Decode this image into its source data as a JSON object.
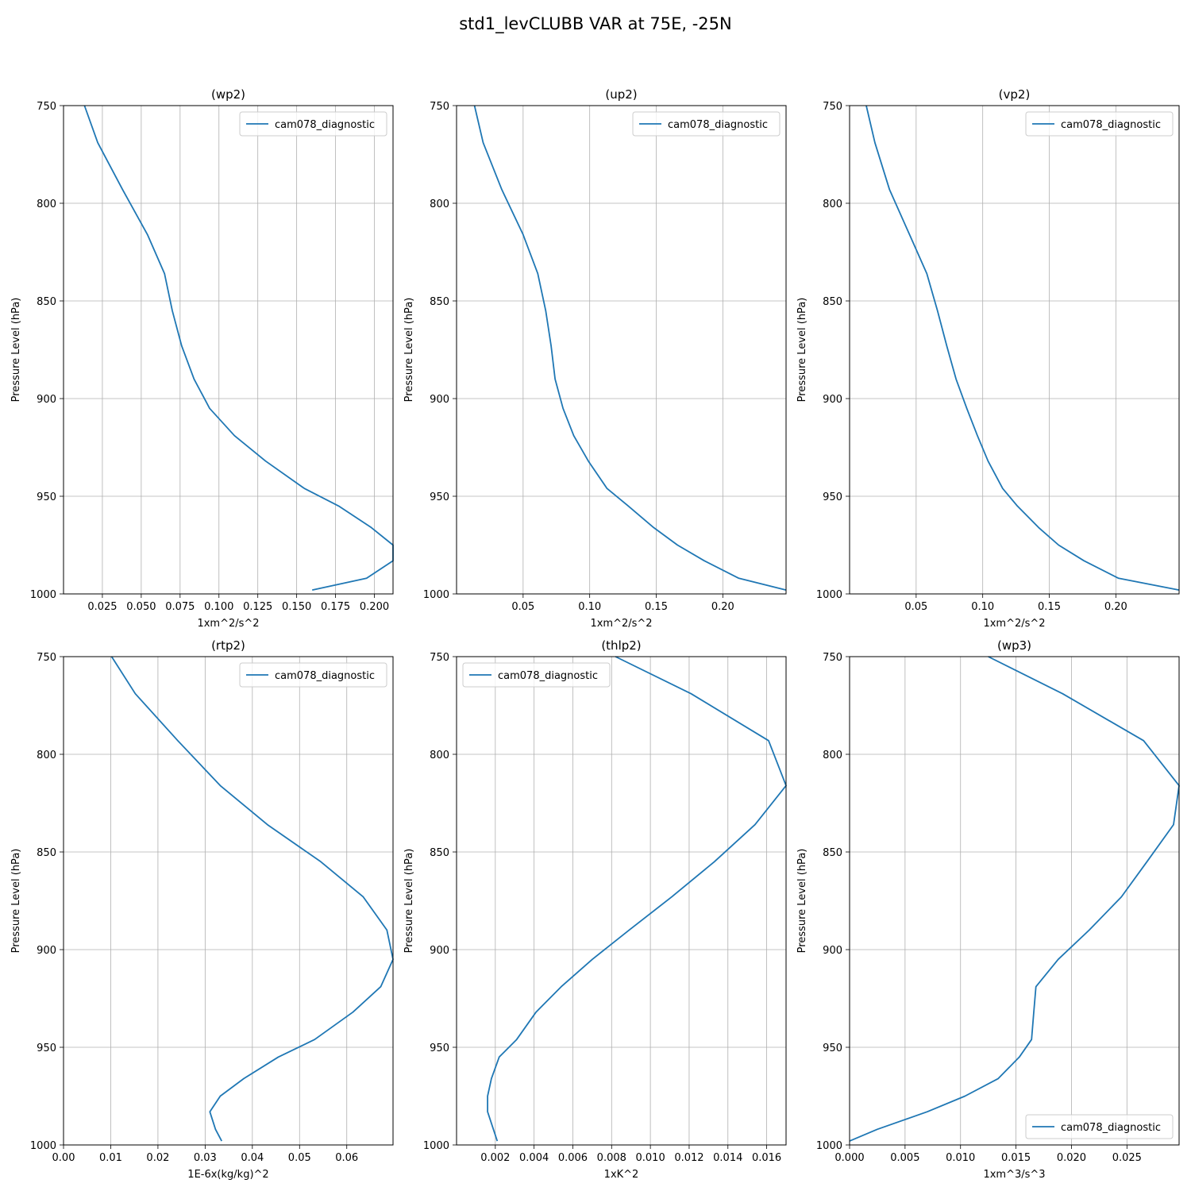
{
  "figure": {
    "title": "std1_levCLUBB VAR at 75E, -25N"
  },
  "series_color": "#1f77b4",
  "chart_data": [
    {
      "type": "line",
      "title": "(wp2)",
      "xlabel": "1xm^2/s^2",
      "ylabel": "Pressure Level (hPa)",
      "xlim": [
        0.0,
        0.212
      ],
      "ylim": [
        1000,
        750
      ],
      "xticks": [
        "0.025",
        "0.050",
        "0.075",
        "0.100",
        "0.125",
        "0.150",
        "0.175",
        "0.200"
      ],
      "xtick_values": [
        0.025,
        0.05,
        0.075,
        0.1,
        0.125,
        0.15,
        0.175,
        0.2
      ],
      "yticks": [
        "750",
        "800",
        "850",
        "900",
        "950",
        "1000"
      ],
      "ytick_values": [
        750,
        800,
        850,
        900,
        950,
        1000
      ],
      "grid": true,
      "legend_position": "upper right",
      "series": [
        {
          "name": "cam078_diagnostic",
          "x": [
            0.0135,
            0.022,
            0.038,
            0.054,
            0.065,
            0.07,
            0.076,
            0.084,
            0.094,
            0.11,
            0.13,
            0.155,
            0.177,
            0.198,
            0.212,
            0.212,
            0.195,
            0.16
          ],
          "y": [
            750,
            769,
            793,
            816,
            836,
            855,
            873,
            890,
            905,
            919,
            932,
            946,
            955,
            966,
            975,
            983,
            992,
            998
          ]
        }
      ]
    },
    {
      "type": "line",
      "title": "(up2)",
      "xlabel": "1xm^2/s^2",
      "ylabel": "Pressure Level (hPa)",
      "xlim": [
        0.0,
        0.2475
      ],
      "ylim": [
        1000,
        750
      ],
      "xticks": [
        "0.05",
        "0.10",
        "0.15",
        "0.20"
      ],
      "xtick_values": [
        0.05,
        0.1,
        0.15,
        0.2
      ],
      "yticks": [
        "750",
        "800",
        "850",
        "900",
        "950",
        "1000"
      ],
      "ytick_values": [
        750,
        800,
        850,
        900,
        950,
        1000
      ],
      "grid": true,
      "legend_position": "upper right",
      "series": [
        {
          "name": "cam078_diagnostic",
          "x": [
            0.0135,
            0.02,
            0.034,
            0.05,
            0.061,
            0.067,
            0.071,
            0.074,
            0.08,
            0.088,
            0.099,
            0.113,
            0.129,
            0.148,
            0.166,
            0.186,
            0.212,
            0.2475
          ],
          "y": [
            750,
            769,
            793,
            816,
            836,
            855,
            873,
            890,
            905,
            919,
            932,
            946,
            955,
            966,
            975,
            983,
            992,
            998
          ]
        }
      ]
    },
    {
      "type": "line",
      "title": "(vp2)",
      "xlabel": "1xm^2/s^2",
      "ylabel": "Pressure Level (hPa)",
      "xlim": [
        0.0,
        0.2475
      ],
      "ylim": [
        1000,
        750
      ],
      "xticks": [
        "0.05",
        "0.10",
        "0.15",
        "0.20"
      ],
      "xtick_values": [
        0.05,
        0.1,
        0.15,
        0.2
      ],
      "yticks": [
        "750",
        "800",
        "850",
        "900",
        "950",
        "1000"
      ],
      "ytick_values": [
        750,
        800,
        850,
        900,
        950,
        1000
      ],
      "grid": true,
      "legend_position": "upper right",
      "series": [
        {
          "name": "cam078_diagnostic",
          "x": [
            0.0125,
            0.019,
            0.03,
            0.045,
            0.058,
            0.066,
            0.073,
            0.08,
            0.088,
            0.096,
            0.104,
            0.115,
            0.126,
            0.142,
            0.157,
            0.176,
            0.202,
            0.2475
          ],
          "y": [
            750,
            769,
            793,
            816,
            836,
            855,
            873,
            890,
            905,
            919,
            932,
            946,
            955,
            966,
            975,
            983,
            992,
            998
          ]
        }
      ]
    },
    {
      "type": "line",
      "title": "(rtp2)",
      "xlabel": "1E-6x(kg/kg)^2",
      "ylabel": "Pressure Level (hPa)",
      "xlim": [
        0.0,
        0.0698
      ],
      "ylim": [
        1000,
        750
      ],
      "xticks": [
        "0.00",
        "0.01",
        "0.02",
        "0.03",
        "0.04",
        "0.05",
        "0.06"
      ],
      "xtick_values": [
        0.0,
        0.01,
        0.02,
        0.03,
        0.04,
        0.05,
        0.06
      ],
      "yticks": [
        "750",
        "800",
        "850",
        "900",
        "950",
        "1000"
      ],
      "ytick_values": [
        750,
        800,
        850,
        900,
        950,
        1000
      ],
      "grid": true,
      "legend_position": "upper right",
      "series": [
        {
          "name": "cam078_diagnostic",
          "x": [
            0.0102,
            0.0152,
            0.0242,
            0.0332,
            0.0432,
            0.0545,
            0.0635,
            0.0685,
            0.0698,
            0.0672,
            0.0613,
            0.0532,
            0.0455,
            0.0382,
            0.0332,
            0.031,
            0.0322,
            0.0335
          ],
          "y": [
            750,
            769,
            793,
            816,
            836,
            855,
            873,
            890,
            905,
            919,
            932,
            946,
            955,
            966,
            975,
            983,
            992,
            998
          ]
        }
      ]
    },
    {
      "type": "line",
      "title": "(thlp2)",
      "xlabel": "1xK^2",
      "ylabel": "Pressure Level (hPa)",
      "xlim": [
        0.0,
        0.017
      ],
      "ylim": [
        1000,
        750
      ],
      "xticks": [
        "0.002",
        "0.004",
        "0.006",
        "0.008",
        "0.010",
        "0.012",
        "0.014",
        "0.016"
      ],
      "xtick_values": [
        0.002,
        0.004,
        0.006,
        0.008,
        0.01,
        0.012,
        0.014,
        0.016
      ],
      "yticks": [
        "750",
        "800",
        "850",
        "900",
        "950",
        "1000"
      ],
      "ytick_values": [
        750,
        800,
        850,
        900,
        950,
        1000
      ],
      "grid": true,
      "legend_position": "upper left",
      "series": [
        {
          "name": "cam078_diagnostic",
          "x": [
            0.0082,
            0.0121,
            0.0161,
            0.017,
            0.0154,
            0.0133,
            0.0111,
            0.0089,
            0.007,
            0.0054,
            0.0041,
            0.0031,
            0.0022,
            0.0018,
            0.0016,
            0.0016,
            0.0019,
            0.0021
          ],
          "y": [
            750,
            769,
            793,
            816,
            836,
            855,
            873,
            890,
            905,
            919,
            932,
            946,
            955,
            966,
            975,
            983,
            992,
            998
          ]
        }
      ]
    },
    {
      "type": "line",
      "title": "(wp3)",
      "xlabel": "1xm^3/s^3",
      "ylabel": "Pressure Level (hPa)",
      "xlim": [
        0.0,
        0.0297
      ],
      "ylim": [
        1000,
        750
      ],
      "xticks": [
        "0.000",
        "0.005",
        "0.010",
        "0.015",
        "0.020",
        "0.025"
      ],
      "xtick_values": [
        0.0,
        0.005,
        0.01,
        0.015,
        0.02,
        0.025
      ],
      "yticks": [
        "750",
        "800",
        "850",
        "900",
        "950",
        "1000"
      ],
      "ytick_values": [
        750,
        800,
        850,
        900,
        950,
        1000
      ],
      "grid": true,
      "legend_position": "lower right",
      "series": [
        {
          "name": "cam078_diagnostic",
          "x": [
            0.0125,
            0.0192,
            0.0265,
            0.0297,
            0.0292,
            0.0268,
            0.0245,
            0.0216,
            0.0188,
            0.0168,
            0.0166,
            0.0164,
            0.0153,
            0.0134,
            0.0104,
            0.007,
            0.0025,
            0.0
          ],
          "y": [
            750,
            769,
            793,
            816,
            836,
            855,
            873,
            890,
            905,
            919,
            932,
            946,
            955,
            966,
            975,
            983,
            992,
            998
          ]
        }
      ]
    }
  ]
}
